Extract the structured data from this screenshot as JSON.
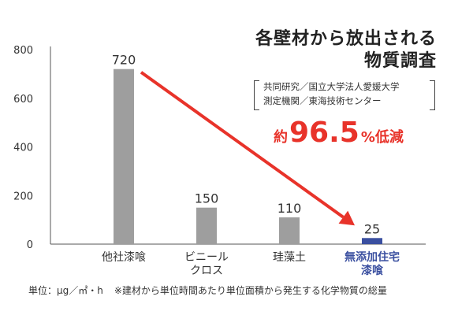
{
  "chart_data": {
    "type": "bar",
    "title_lines": [
      "各壁材から放出される",
      "物質調査"
    ],
    "categories": [
      "他社漆喰",
      "ビニールクロス",
      "珪藻土",
      "無添加住宅漆喰"
    ],
    "category_lines": [
      [
        "他社漆喰"
      ],
      [
        "ビニール",
        "クロス"
      ],
      [
        "珪藻土"
      ],
      [
        "無添加住宅",
        "漆喰"
      ]
    ],
    "values": [
      720,
      150,
      110,
      25
    ],
    "value_labels": [
      "720",
      "150",
      "110",
      "25"
    ],
    "yticks": [
      "0",
      "200",
      "400",
      "600",
      "800"
    ],
    "ylim": [
      0,
      800
    ],
    "grid": false,
    "highlight_index": 3,
    "colors": {
      "bar": "#9e9e9e",
      "highlight_bar": "#3a4fa0",
      "highlight_label": "#3a4fa0",
      "arrow": "#e8332a",
      "axis": "#555555"
    },
    "annotation": {
      "prefix": "約",
      "value": "96.5",
      "suffix": "%低減"
    }
  },
  "source": {
    "line1": "共同研究／国立大学法人愛媛大学",
    "line2": "測定機関／東海技術センター"
  },
  "footer": {
    "unit": "単位：μg／㎡・h",
    "note": "※建材から単位時間あたり単位面積から発生する化学物質の総量"
  }
}
